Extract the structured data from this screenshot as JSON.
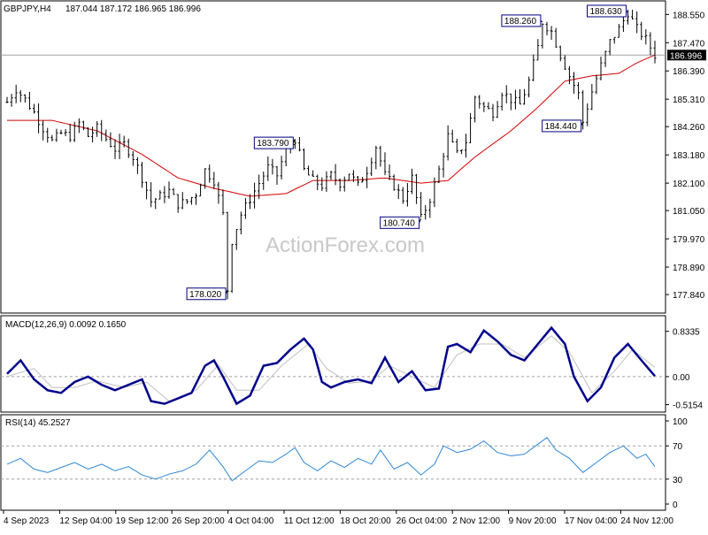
{
  "header": {
    "symbol": "GBPJPY,H4",
    "ohlc": "187.044 187.172 186.965 186.996"
  },
  "watermark": "ActionForex.com",
  "colors": {
    "candles": "#000000",
    "moving_average": "#d40000",
    "macd": "#00008b",
    "signal": "#c0c0c0",
    "rsi": "#2f86d6",
    "grid": "#a0a0a0",
    "label_box": "#000080"
  },
  "chart_data": [
    {
      "type": "candlestick",
      "title": "GBPJPY,H4",
      "ylim": [
        177.2,
        188.9
      ],
      "yticks": [
        "188.550",
        "187.470",
        "186.390",
        "185.310",
        "184.260",
        "183.180",
        "182.100",
        "181.050",
        "179.970",
        "178.890",
        "177.840"
      ],
      "last_price": "186.996",
      "moving_average_line": true,
      "price_series": [
        {
          "x": 0,
          "y": 185.2
        },
        {
          "x": 2,
          "y": 185.7
        },
        {
          "x": 4,
          "y": 185.3
        },
        {
          "x": 6,
          "y": 184.8
        },
        {
          "x": 8,
          "y": 184.2
        },
        {
          "x": 10,
          "y": 183.7
        },
        {
          "x": 12,
          "y": 184.0
        },
        {
          "x": 14,
          "y": 183.9
        },
        {
          "x": 16,
          "y": 184.4
        },
        {
          "x": 18,
          "y": 183.9
        },
        {
          "x": 20,
          "y": 184.2
        },
        {
          "x": 22,
          "y": 183.8
        },
        {
          "x": 24,
          "y": 183.4
        },
        {
          "x": 26,
          "y": 183.6
        },
        {
          "x": 28,
          "y": 183.1
        },
        {
          "x": 30,
          "y": 182.3
        },
        {
          "x": 32,
          "y": 181.4
        },
        {
          "x": 34,
          "y": 181.6
        },
        {
          "x": 36,
          "y": 181.8
        },
        {
          "x": 38,
          "y": 181.3
        },
        {
          "x": 40,
          "y": 181.4
        },
        {
          "x": 42,
          "y": 181.7
        },
        {
          "x": 44,
          "y": 182.6
        },
        {
          "x": 46,
          "y": 182.2
        },
        {
          "x": 48,
          "y": 180.9
        },
        {
          "x": 49,
          "y": 178.02
        },
        {
          "x": 50,
          "y": 179.9
        },
        {
          "x": 52,
          "y": 180.9
        },
        {
          "x": 54,
          "y": 181.5
        },
        {
          "x": 56,
          "y": 182.1
        },
        {
          "x": 58,
          "y": 182.7
        },
        {
          "x": 60,
          "y": 182.4
        },
        {
          "x": 62,
          "y": 183.4
        },
        {
          "x": 64,
          "y": 183.79
        },
        {
          "x": 66,
          "y": 182.6
        },
        {
          "x": 68,
          "y": 182.2
        },
        {
          "x": 70,
          "y": 182.0
        },
        {
          "x": 72,
          "y": 182.4
        },
        {
          "x": 74,
          "y": 182.1
        },
        {
          "x": 76,
          "y": 182.5
        },
        {
          "x": 78,
          "y": 182.0
        },
        {
          "x": 80,
          "y": 182.6
        },
        {
          "x": 82,
          "y": 183.5
        },
        {
          "x": 84,
          "y": 182.4
        },
        {
          "x": 86,
          "y": 182.0
        },
        {
          "x": 88,
          "y": 181.5
        },
        {
          "x": 90,
          "y": 182.3
        },
        {
          "x": 92,
          "y": 180.74
        },
        {
          "x": 94,
          "y": 181.5
        },
        {
          "x": 96,
          "y": 182.6
        },
        {
          "x": 98,
          "y": 183.9
        },
        {
          "x": 100,
          "y": 183.2
        },
        {
          "x": 102,
          "y": 183.7
        },
        {
          "x": 104,
          "y": 185.4
        },
        {
          "x": 106,
          "y": 185.0
        },
        {
          "x": 108,
          "y": 184.8
        },
        {
          "x": 110,
          "y": 185.6
        },
        {
          "x": 112,
          "y": 185.3
        },
        {
          "x": 114,
          "y": 185.1
        },
        {
          "x": 116,
          "y": 186.0
        },
        {
          "x": 118,
          "y": 187.3
        },
        {
          "x": 119,
          "y": 188.26
        },
        {
          "x": 121,
          "y": 187.9
        },
        {
          "x": 123,
          "y": 187.0
        },
        {
          "x": 125,
          "y": 186.2
        },
        {
          "x": 127,
          "y": 185.5
        },
        {
          "x": 128,
          "y": 184.44
        },
        {
          "x": 130,
          "y": 185.6
        },
        {
          "x": 132,
          "y": 186.6
        },
        {
          "x": 134,
          "y": 187.5
        },
        {
          "x": 136,
          "y": 188.0
        },
        {
          "x": 138,
          "y": 188.63
        },
        {
          "x": 140,
          "y": 188.0
        },
        {
          "x": 142,
          "y": 187.6
        },
        {
          "x": 144,
          "y": 186.996
        }
      ],
      "moving_average": [
        {
          "x": 0,
          "y": 184.5
        },
        {
          "x": 10,
          "y": 184.5
        },
        {
          "x": 20,
          "y": 184.1
        },
        {
          "x": 30,
          "y": 183.2
        },
        {
          "x": 38,
          "y": 182.3
        },
        {
          "x": 46,
          "y": 181.9
        },
        {
          "x": 54,
          "y": 181.6
        },
        {
          "x": 62,
          "y": 181.7
        },
        {
          "x": 68,
          "y": 182.2
        },
        {
          "x": 76,
          "y": 182.2
        },
        {
          "x": 84,
          "y": 182.3
        },
        {
          "x": 92,
          "y": 182.1
        },
        {
          "x": 98,
          "y": 182.2
        },
        {
          "x": 104,
          "y": 183.1
        },
        {
          "x": 112,
          "y": 184.1
        },
        {
          "x": 118,
          "y": 185.0
        },
        {
          "x": 124,
          "y": 186.0
        },
        {
          "x": 130,
          "y": 186.2
        },
        {
          "x": 136,
          "y": 186.3
        },
        {
          "x": 140,
          "y": 186.7
        },
        {
          "x": 144,
          "y": 187.0
        }
      ],
      "annotations": [
        {
          "text": "188.260",
          "x": 119,
          "y": 188.26
        },
        {
          "text": "188.630",
          "x": 138,
          "y": 188.63
        },
        {
          "text": "183.790",
          "x": 64,
          "y": 183.79
        },
        {
          "text": "184.440",
          "x": 128,
          "y": 184.44
        },
        {
          "text": "180.740",
          "x": 92,
          "y": 180.74
        },
        {
          "text": "178.020",
          "x": 49,
          "y": 178.02
        }
      ]
    },
    {
      "type": "line",
      "title": "MACD(12,26,9) 0.0092 0.1650",
      "ylim": [
        -0.62,
        1.04
      ],
      "yticks": [
        "0.8335",
        "0.00",
        "-0.5154"
      ],
      "zero_line": 0,
      "series": [
        {
          "values": [
            {
              "x": 0,
              "y": 0.05
            },
            {
              "x": 3,
              "y": 0.3
            },
            {
              "x": 6,
              "y": -0.05
            },
            {
              "x": 9,
              "y": -0.25
            },
            {
              "x": 12,
              "y": -0.3
            },
            {
              "x": 15,
              "y": -0.1
            },
            {
              "x": 18,
              "y": 0.0
            },
            {
              "x": 21,
              "y": -0.15
            },
            {
              "x": 24,
              "y": -0.25
            },
            {
              "x": 27,
              "y": -0.15
            },
            {
              "x": 30,
              "y": -0.05
            },
            {
              "x": 32,
              "y": -0.45
            },
            {
              "x": 35,
              "y": -0.5
            },
            {
              "x": 38,
              "y": -0.4
            },
            {
              "x": 41,
              "y": -0.3
            },
            {
              "x": 44,
              "y": 0.2
            },
            {
              "x": 46,
              "y": 0.3
            },
            {
              "x": 48,
              "y": 0.0
            },
            {
              "x": 51,
              "y": -0.5
            },
            {
              "x": 54,
              "y": -0.35
            },
            {
              "x": 57,
              "y": 0.2
            },
            {
              "x": 60,
              "y": 0.25
            },
            {
              "x": 63,
              "y": 0.5
            },
            {
              "x": 66,
              "y": 0.7
            },
            {
              "x": 68,
              "y": 0.5
            },
            {
              "x": 70,
              "y": -0.1
            },
            {
              "x": 72,
              "y": -0.2
            },
            {
              "x": 75,
              "y": -0.1
            },
            {
              "x": 78,
              "y": -0.05
            },
            {
              "x": 81,
              "y": -0.12
            },
            {
              "x": 84,
              "y": 0.35
            },
            {
              "x": 87,
              "y": -0.1
            },
            {
              "x": 90,
              "y": 0.1
            },
            {
              "x": 93,
              "y": -0.25
            },
            {
              "x": 96,
              "y": -0.22
            },
            {
              "x": 98,
              "y": 0.55
            },
            {
              "x": 100,
              "y": 0.6
            },
            {
              "x": 103,
              "y": 0.45
            },
            {
              "x": 106,
              "y": 0.85
            },
            {
              "x": 109,
              "y": 0.65
            },
            {
              "x": 112,
              "y": 0.4
            },
            {
              "x": 115,
              "y": 0.3
            },
            {
              "x": 118,
              "y": 0.6
            },
            {
              "x": 121,
              "y": 0.9
            },
            {
              "x": 124,
              "y": 0.6
            },
            {
              "x": 126,
              "y": 0.0
            },
            {
              "x": 129,
              "y": -0.45
            },
            {
              "x": 132,
              "y": -0.2
            },
            {
              "x": 135,
              "y": 0.35
            },
            {
              "x": 138,
              "y": 0.6
            },
            {
              "x": 141,
              "y": 0.3
            },
            {
              "x": 144,
              "y": 0.01
            }
          ]
        },
        {
          "values": [
            {
              "x": 0,
              "y": 0.0
            },
            {
              "x": 6,
              "y": 0.15
            },
            {
              "x": 10,
              "y": -0.2
            },
            {
              "x": 15,
              "y": -0.2
            },
            {
              "x": 20,
              "y": -0.08
            },
            {
              "x": 26,
              "y": -0.2
            },
            {
              "x": 31,
              "y": -0.1
            },
            {
              "x": 36,
              "y": -0.45
            },
            {
              "x": 42,
              "y": -0.25
            },
            {
              "x": 47,
              "y": 0.22
            },
            {
              "x": 51,
              "y": -0.25
            },
            {
              "x": 56,
              "y": -0.25
            },
            {
              "x": 61,
              "y": 0.2
            },
            {
              "x": 67,
              "y": 0.6
            },
            {
              "x": 71,
              "y": 0.15
            },
            {
              "x": 76,
              "y": -0.12
            },
            {
              "x": 81,
              "y": -0.08
            },
            {
              "x": 85,
              "y": 0.2
            },
            {
              "x": 90,
              "y": 0.0
            },
            {
              "x": 95,
              "y": -0.2
            },
            {
              "x": 100,
              "y": 0.4
            },
            {
              "x": 105,
              "y": 0.6
            },
            {
              "x": 110,
              "y": 0.6
            },
            {
              "x": 115,
              "y": 0.35
            },
            {
              "x": 121,
              "y": 0.75
            },
            {
              "x": 125,
              "y": 0.45
            },
            {
              "x": 130,
              "y": -0.3
            },
            {
              "x": 135,
              "y": 0.1
            },
            {
              "x": 139,
              "y": 0.5
            },
            {
              "x": 144,
              "y": 0.17
            }
          ]
        }
      ]
    },
    {
      "type": "line",
      "title": "RSI(14) 45.2527",
      "ylim": [
        0,
        100
      ],
      "yticks": [
        "100",
        "70",
        "30",
        "0"
      ],
      "levels": [
        70,
        30
      ],
      "series": [
        {
          "values": [
            {
              "x": 0,
              "y": 48
            },
            {
              "x": 3,
              "y": 55
            },
            {
              "x": 6,
              "y": 42
            },
            {
              "x": 9,
              "y": 38
            },
            {
              "x": 12,
              "y": 44
            },
            {
              "x": 15,
              "y": 50
            },
            {
              "x": 18,
              "y": 42
            },
            {
              "x": 21,
              "y": 48
            },
            {
              "x": 24,
              "y": 40
            },
            {
              "x": 27,
              "y": 45
            },
            {
              "x": 30,
              "y": 35
            },
            {
              "x": 33,
              "y": 30
            },
            {
              "x": 36,
              "y": 36
            },
            {
              "x": 39,
              "y": 40
            },
            {
              "x": 42,
              "y": 48
            },
            {
              "x": 45,
              "y": 65
            },
            {
              "x": 48,
              "y": 45
            },
            {
              "x": 50,
              "y": 28
            },
            {
              "x": 53,
              "y": 40
            },
            {
              "x": 56,
              "y": 52
            },
            {
              "x": 59,
              "y": 50
            },
            {
              "x": 62,
              "y": 60
            },
            {
              "x": 64,
              "y": 68
            },
            {
              "x": 66,
              "y": 50
            },
            {
              "x": 69,
              "y": 40
            },
            {
              "x": 72,
              "y": 52
            },
            {
              "x": 75,
              "y": 44
            },
            {
              "x": 78,
              "y": 55
            },
            {
              "x": 81,
              "y": 48
            },
            {
              "x": 83,
              "y": 65
            },
            {
              "x": 86,
              "y": 42
            },
            {
              "x": 89,
              "y": 50
            },
            {
              "x": 92,
              "y": 35
            },
            {
              "x": 95,
              "y": 48
            },
            {
              "x": 97,
              "y": 70
            },
            {
              "x": 100,
              "y": 62
            },
            {
              "x": 103,
              "y": 66
            },
            {
              "x": 106,
              "y": 76
            },
            {
              "x": 109,
              "y": 62
            },
            {
              "x": 112,
              "y": 58
            },
            {
              "x": 115,
              "y": 60
            },
            {
              "x": 118,
              "y": 72
            },
            {
              "x": 120,
              "y": 80
            },
            {
              "x": 122,
              "y": 65
            },
            {
              "x": 125,
              "y": 55
            },
            {
              "x": 128,
              "y": 38
            },
            {
              "x": 131,
              "y": 50
            },
            {
              "x": 134,
              "y": 62
            },
            {
              "x": 137,
              "y": 70
            },
            {
              "x": 140,
              "y": 55
            },
            {
              "x": 142,
              "y": 60
            },
            {
              "x": 144,
              "y": 45
            }
          ]
        }
      ]
    }
  ],
  "x_axis": {
    "labels": [
      "4 Sep 2023",
      "12 Sep 04:00",
      "19 Sep 12:00",
      "26 Sep 20:00",
      "4 Oct 04:00",
      "11 Oct 12:00",
      "18 Oct 20:00",
      "26 Oct 04:00",
      "2 Nov 12:00",
      "9 Nov 20:00",
      "17 Nov 04:00",
      "24 Nov 12:00"
    ]
  }
}
